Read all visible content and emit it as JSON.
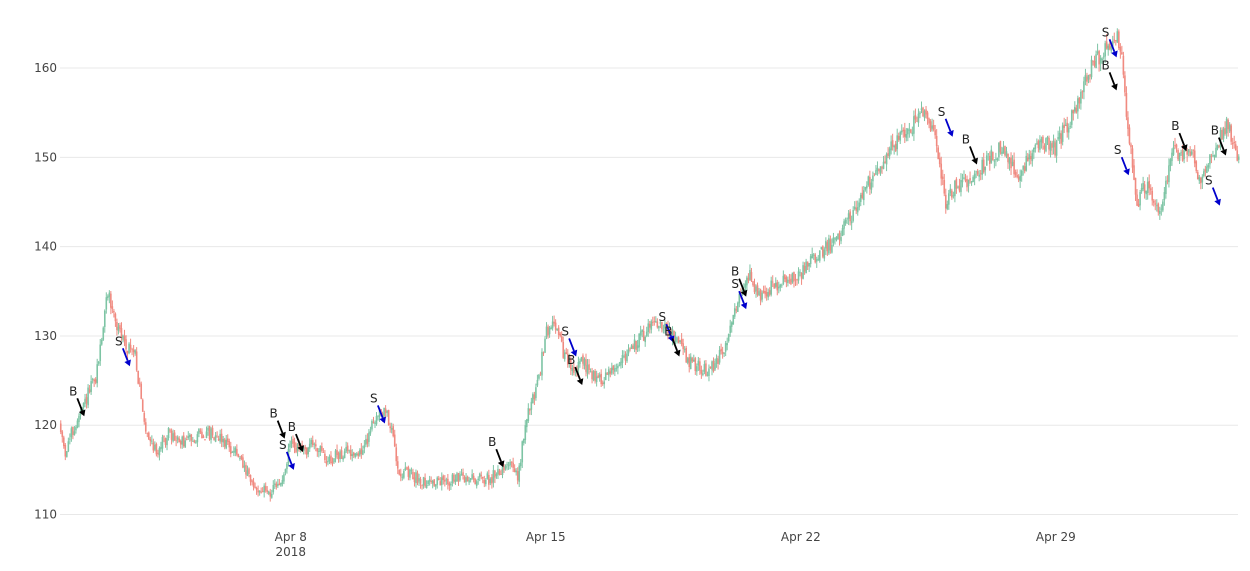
{
  "chart_data": {
    "type": "candlestick",
    "title": "",
    "xlabel": "",
    "ylabel": "",
    "ylim": [
      109.5,
      166.5
    ],
    "xlim": [
      "2018-04-01T16:00",
      "2018-05-04T00:00"
    ],
    "grid": "horizontal",
    "legend": "none",
    "colors": {
      "up": "#7dc4a4",
      "down": "#f08a80",
      "buy_arrow": "#000000",
      "sell_arrow": "#0000cc",
      "grid": "#e8e8e8"
    },
    "y_ticks": [
      110,
      120,
      130,
      140,
      150,
      160
    ],
    "x_ticks": [
      {
        "date": "2018-04-08",
        "label": "Apr 8",
        "sublabel": "2018"
      },
      {
        "date": "2018-04-15",
        "label": "Apr 15",
        "sublabel": ""
      },
      {
        "date": "2018-04-22",
        "label": "Apr 22",
        "sublabel": ""
      },
      {
        "date": "2018-04-29",
        "label": "Apr 29",
        "sublabel": ""
      }
    ],
    "price_path": [
      [
        "2018-04-01T16:00",
        120
      ],
      [
        "2018-04-01T20:00",
        117
      ],
      [
        "2018-04-02T00:00",
        119
      ],
      [
        "2018-04-02T06:00",
        121
      ],
      [
        "2018-04-02T12:00",
        124
      ],
      [
        "2018-04-02T16:00",
        125
      ],
      [
        "2018-04-02T20:00",
        130
      ],
      [
        "2018-04-03T00:00",
        135
      ],
      [
        "2018-04-03T06:00",
        131
      ],
      [
        "2018-04-03T12:00",
        129
      ],
      [
        "2018-04-03T18:00",
        128
      ],
      [
        "2018-04-04T00:00",
        120
      ],
      [
        "2018-04-04T08:00",
        117
      ],
      [
        "2018-04-04T16:00",
        119
      ],
      [
        "2018-04-05T00:00",
        118
      ],
      [
        "2018-04-05T12:00",
        119
      ],
      [
        "2018-04-06T00:00",
        119
      ],
      [
        "2018-04-06T12:00",
        117
      ],
      [
        "2018-04-07T00:00",
        113
      ],
      [
        "2018-04-07T12:00",
        112.5
      ],
      [
        "2018-04-07T20:00",
        114
      ],
      [
        "2018-04-08T00:00",
        118
      ],
      [
        "2018-04-08T08:00",
        117
      ],
      [
        "2018-04-08T16:00",
        118
      ],
      [
        "2018-04-09T00:00",
        116
      ],
      [
        "2018-04-09T12:00",
        117
      ],
      [
        "2018-04-10T00:00",
        117
      ],
      [
        "2018-04-10T08:00",
        121
      ],
      [
        "2018-04-10T16:00",
        121.5
      ],
      [
        "2018-04-11T00:00",
        115
      ],
      [
        "2018-04-11T12:00",
        114
      ],
      [
        "2018-04-12T00:00",
        113.5
      ],
      [
        "2018-04-12T12:00",
        114
      ],
      [
        "2018-04-13T00:00",
        114
      ],
      [
        "2018-04-13T12:00",
        114
      ],
      [
        "2018-04-14T00:00",
        116
      ],
      [
        "2018-04-14T06:00",
        114
      ],
      [
        "2018-04-14T12:00",
        121
      ],
      [
        "2018-04-14T20:00",
        125
      ],
      [
        "2018-04-15T00:00",
        130
      ],
      [
        "2018-04-15T06:00",
        132
      ],
      [
        "2018-04-15T12:00",
        128
      ],
      [
        "2018-04-15T18:00",
        126
      ],
      [
        "2018-04-16T00:00",
        127
      ],
      [
        "2018-04-16T12:00",
        125
      ],
      [
        "2018-04-17T00:00",
        127
      ],
      [
        "2018-04-17T12:00",
        129
      ],
      [
        "2018-04-18T00:00",
        132
      ],
      [
        "2018-04-18T12:00",
        130
      ],
      [
        "2018-04-19T00:00",
        127
      ],
      [
        "2018-04-19T12:00",
        126
      ],
      [
        "2018-04-20T00:00",
        129
      ],
      [
        "2018-04-20T08:00",
        135
      ],
      [
        "2018-04-20T16:00",
        137
      ],
      [
        "2018-04-20T20:00",
        134
      ],
      [
        "2018-04-21T00:00",
        135
      ],
      [
        "2018-04-21T12:00",
        136
      ],
      [
        "2018-04-22T00:00",
        137
      ],
      [
        "2018-04-22T12:00",
        139
      ],
      [
        "2018-04-23T00:00",
        141
      ],
      [
        "2018-04-23T12:00",
        144
      ],
      [
        "2018-04-24T00:00",
        148
      ],
      [
        "2018-04-24T12:00",
        151
      ],
      [
        "2018-04-25T00:00",
        153
      ],
      [
        "2018-04-25T08:00",
        155
      ],
      [
        "2018-04-25T16:00",
        153
      ],
      [
        "2018-04-26T00:00",
        145
      ],
      [
        "2018-04-26T08:00",
        147
      ],
      [
        "2018-04-26T16:00",
        147.5
      ],
      [
        "2018-04-27T00:00",
        149
      ],
      [
        "2018-04-27T12:00",
        151
      ],
      [
        "2018-04-28T00:00",
        148
      ],
      [
        "2018-04-28T12:00",
        152
      ],
      [
        "2018-04-29T00:00",
        151
      ],
      [
        "2018-04-29T12:00",
        155
      ],
      [
        "2018-04-30T00:00",
        160
      ],
      [
        "2018-04-30T08:00",
        162
      ],
      [
        "2018-04-30T16:00",
        164
      ],
      [
        "2018-04-30T20:00",
        161
      ],
      [
        "2018-05-01T00:00",
        153
      ],
      [
        "2018-05-01T06:00",
        145
      ],
      [
        "2018-05-01T12:00",
        147
      ],
      [
        "2018-05-01T20:00",
        144
      ],
      [
        "2018-05-02T00:00",
        146
      ],
      [
        "2018-05-02T06:00",
        151
      ],
      [
        "2018-05-02T12:00",
        150
      ],
      [
        "2018-05-02T18:00",
        151
      ],
      [
        "2018-05-03T00:00",
        147
      ],
      [
        "2018-05-03T06:00",
        150
      ],
      [
        "2018-05-03T12:00",
        152
      ],
      [
        "2018-05-03T18:00",
        154
      ],
      [
        "2018-05-03T22:00",
        151
      ],
      [
        "2018-05-04T00:00",
        150
      ]
    ],
    "annotations": [
      {
        "label": "B",
        "type": "buy",
        "date": "2018-04-02T08:00",
        "price": 121.0
      },
      {
        "label": "S",
        "type": "sell",
        "date": "2018-04-03T14:00",
        "price": 126.6
      },
      {
        "label": "B",
        "type": "buy",
        "date": "2018-04-07T20:00",
        "price": 118.5
      },
      {
        "label": "B",
        "type": "buy",
        "date": "2018-04-08T08:00",
        "price": 117.0
      },
      {
        "label": "S",
        "type": "sell",
        "date": "2018-04-08T02:00",
        "price": 115.0
      },
      {
        "label": "S",
        "type": "sell",
        "date": "2018-04-10T14:00",
        "price": 120.2
      },
      {
        "label": "B",
        "type": "buy",
        "date": "2018-04-13T20:00",
        "price": 115.3
      },
      {
        "label": "S",
        "type": "sell",
        "date": "2018-04-15T20:00",
        "price": 127.7
      },
      {
        "label": "B",
        "type": "buy",
        "date": "2018-04-16T00:00",
        "price": 124.5
      },
      {
        "label": "S",
        "type": "sell",
        "date": "2018-04-18T12:00",
        "price": 129.3
      },
      {
        "label": "B",
        "type": "buy",
        "date": "2018-04-18T16:00",
        "price": 127.7
      },
      {
        "label": "B",
        "type": "buy",
        "date": "2018-04-20T12:00",
        "price": 134.4
      },
      {
        "label": "S",
        "type": "sell",
        "date": "2018-04-20T12:00",
        "price": 133.0
      },
      {
        "label": "S",
        "type": "sell",
        "date": "2018-04-26T04:00",
        "price": 152.3
      },
      {
        "label": "B",
        "type": "buy",
        "date": "2018-04-26T20:00",
        "price": 149.2
      },
      {
        "label": "S",
        "type": "sell",
        "date": "2018-04-30T16:00",
        "price": 161.2
      },
      {
        "label": "B",
        "type": "buy",
        "date": "2018-04-30T16:00",
        "price": 157.5
      },
      {
        "label": "S",
        "type": "sell",
        "date": "2018-05-01T00:00",
        "price": 148.0
      },
      {
        "label": "B",
        "type": "buy",
        "date": "2018-05-02T14:00",
        "price": 150.7
      },
      {
        "label": "S",
        "type": "sell",
        "date": "2018-05-03T12:00",
        "price": 144.6
      },
      {
        "label": "B",
        "type": "buy",
        "date": "2018-05-03T16:00",
        "price": 150.2
      }
    ]
  }
}
